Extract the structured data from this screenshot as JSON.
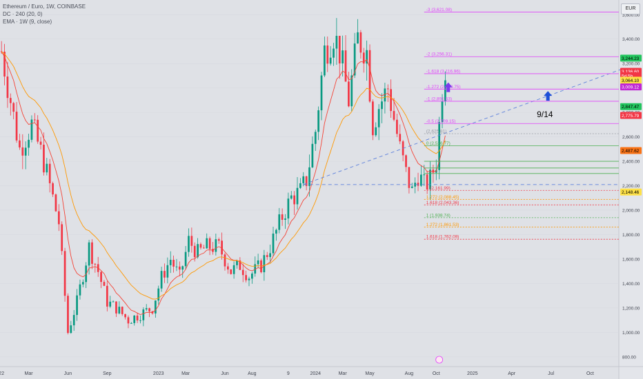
{
  "header": {
    "symbol_line": "Ethereum / Euro, 1W, COINBASE",
    "dc_line": "DC · 240 (20, 0)",
    "ema_line": "EMA · 1W (9, close)",
    "currency_button": "EUR"
  },
  "chart_data": {
    "type": "candlestick",
    "title": "Ethereum / Euro, 1W, COINBASE",
    "y_axis": {
      "ticks": [
        800,
        1000,
        1200,
        1400,
        1600,
        1800,
        2000,
        2200,
        2400,
        2600,
        2800,
        3000,
        3200,
        3400,
        3600
      ],
      "tick_labels": [
        "800.00",
        "1,000.00",
        "1,200.00",
        "1,400.00",
        "1,600.00",
        "1,800.00",
        "2,000.00",
        "2,200.00",
        "2,400.00",
        "2,600.00",
        "2,800.00",
        "3,000.00",
        "3,200.00",
        "3,400.00",
        "3,600.00"
      ],
      "ylim": [
        720,
        3720
      ],
      "position": "right"
    },
    "x_axis": {
      "labels": [
        "22",
        "Mar",
        "Jun",
        "Sep",
        "2023",
        "Mar",
        "Jun",
        "Aug",
        "9",
        "2024",
        "Mar",
        "May",
        "Aug",
        "Oct",
        "2025",
        "Apr",
        "Jul",
        "Oct"
      ],
      "label_weeks": [
        0,
        9,
        22,
        35,
        52,
        61,
        74,
        83,
        95,
        104,
        113,
        122,
        135,
        144,
        156,
        169,
        182,
        195
      ],
      "total_weeks": 205
    },
    "price_path_weeks": [
      0,
      3,
      6,
      10,
      14,
      19,
      22,
      25,
      29,
      32,
      35,
      38,
      42,
      46,
      50,
      53,
      56,
      59,
      62,
      65,
      68,
      72,
      76,
      79,
      82,
      86,
      89,
      93,
      96,
      99,
      101,
      104,
      107,
      110,
      112,
      115,
      118,
      121,
      123,
      125,
      128,
      130,
      132,
      134,
      136,
      138,
      140,
      142,
      144,
      146,
      147
    ],
    "price_path_values": [
      3300,
      2900,
      2500,
      2700,
      2400,
      1900,
      1000,
      1250,
      1700,
      1500,
      1250,
      1200,
      1100,
      1150,
      1200,
      1450,
      1600,
      1450,
      1750,
      1650,
      1700,
      1700,
      1500,
      1550,
      1460,
      1550,
      1700,
      1950,
      2100,
      2150,
      2250,
      2650,
      3300,
      3450,
      3300,
      2900,
      3400,
      3300,
      2700,
      2850,
      3000,
      2750,
      2500,
      2300,
      2150,
      2300,
      2200,
      2250,
      2400,
      3000,
      3180
    ],
    "ema_color": "#f44336",
    "dc_color": "#ff9800",
    "up_color": "#089981",
    "down_color": "#f23645",
    "fib_levels": [
      {
        "label": "-3 (3,621.08)",
        "value": 3621.08,
        "color": "#e040fb",
        "style": "solid"
      },
      {
        "label": "-2 (3,256.31)",
        "value": 3256.31,
        "color": "#e040fb",
        "style": "solid"
      },
      {
        "label": "-1.618 (3,116.96)",
        "value": 3116.96,
        "color": "#e040fb",
        "style": "solid"
      },
      {
        "label": "-1.272 (2,990.75)",
        "value": 2990.75,
        "color": "#e040fb",
        "style": "solid"
      },
      {
        "label": "-1 (2,891.53)",
        "value": 2891.53,
        "color": "#e040fb",
        "style": "solid"
      },
      {
        "label": "-0.5 (2,709.15)",
        "value": 2709.15,
        "color": "#e040fb",
        "style": "solid"
      },
      {
        "label": "(2,625.81)",
        "value": 2625.81,
        "color": "#9598a1",
        "style": "dotted"
      },
      {
        "label": "0 (2,526.77)",
        "value": 2526.77,
        "color": "#4caf50",
        "style": "solid"
      },
      {
        "label": "",
        "value": 2400,
        "color": "#4caf50",
        "style": "solid"
      },
      {
        "label": "",
        "value": 2345,
        "color": "#4caf50",
        "style": "solid"
      },
      {
        "label": "",
        "value": 2300,
        "color": "#4caf50",
        "style": "solid"
      },
      {
        "label": "1 (2,161.99)",
        "value": 2161.99,
        "color": "#f23645",
        "style": "dotted"
      },
      {
        "label": "1.272 (2,088.45)",
        "value": 2088.45,
        "color": "#ff9800",
        "style": "dotted"
      },
      {
        "label": "1.618 (2,043.36)",
        "value": 2043.36,
        "color": "#f23645",
        "style": "dotted"
      },
      {
        "label": "1 (1,938.74)",
        "value": 1938.74,
        "color": "#4caf50",
        "style": "dotted"
      },
      {
        "label": "1.272 (1,861.53)",
        "value": 1861.53,
        "color": "#ff9800",
        "style": "dotted"
      },
      {
        "label": "1.618 (1,762.09)",
        "value": 1762.09,
        "color": "#f23645",
        "style": "dotted"
      }
    ],
    "horizontal_dashed_line": 2210,
    "trend_line": {
      "from_week": 100,
      "from_value": 2210,
      "to_week": 205,
      "to_value": 3150
    },
    "price_tags": [
      {
        "label": "3,244.23",
        "value": 3244.23,
        "bg": "#22c55e",
        "fg": "#000000"
      },
      {
        "label": "3,136.60",
        "value": 3136.6,
        "bg": "#f23645",
        "fg": "#ffffff"
      },
      {
        "label": "5d 5h",
        "value": 3100,
        "bg": "#f23645",
        "fg": "#ffffff"
      },
      {
        "label": "3,064.10",
        "value": 3064.1,
        "bg": "#fde047",
        "fg": "#000000"
      },
      {
        "label": "3,009.12",
        "value": 3009.12,
        "bg": "#c026d3",
        "fg": "#ffffff"
      },
      {
        "label": "2,847.47",
        "value": 2847.47,
        "bg": "#22c55e",
        "fg": "#000000"
      },
      {
        "label": "2,775.79",
        "value": 2775.79,
        "bg": "#f23645",
        "fg": "#ffffff"
      },
      {
        "label": "2,487.62",
        "value": 2487.62,
        "bg": "#f97316",
        "fg": "#000000"
      },
      {
        "label": "2,148.46",
        "value": 2148.46,
        "bg": "#fde047",
        "fg": "#000000"
      }
    ],
    "annotation": {
      "text": "9/14",
      "week": 180,
      "value": 2760
    },
    "arrows": [
      {
        "week": 181,
        "value": 2930,
        "color": "#1d4ed8"
      },
      {
        "week": 148,
        "value": 3000,
        "color": "#7c3aed"
      }
    ]
  }
}
